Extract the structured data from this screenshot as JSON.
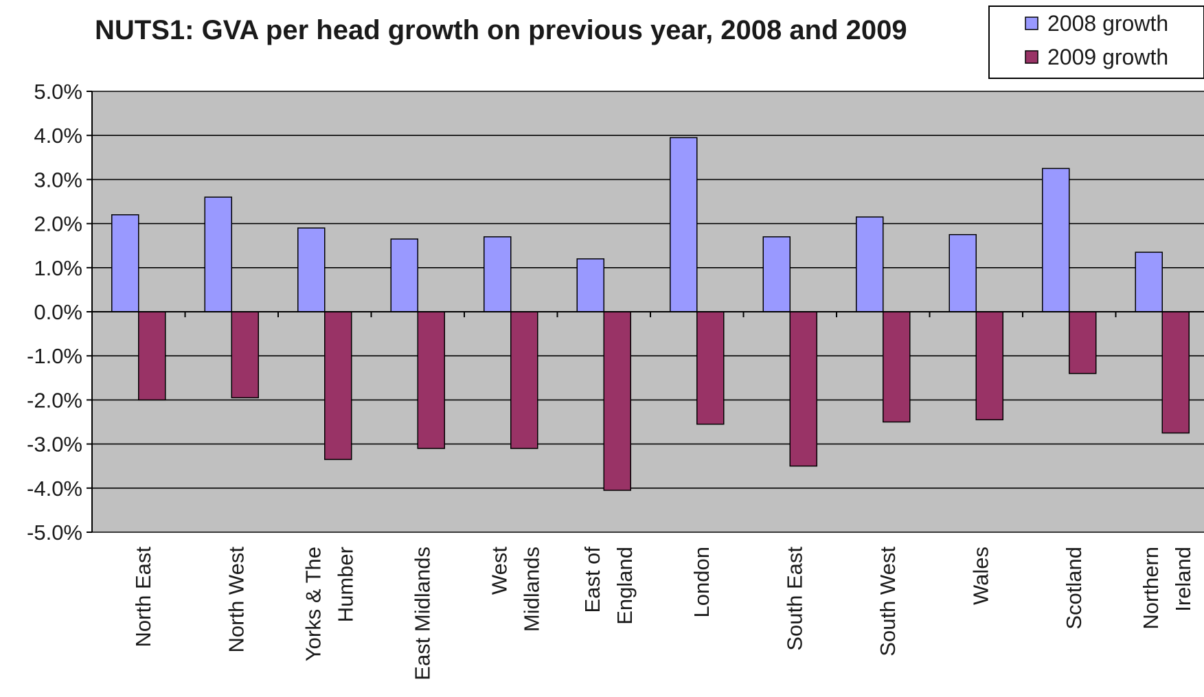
{
  "chart_data": {
    "type": "bar",
    "title": "NUTS1: GVA per head growth on previous year, 2008 and 2009",
    "xlabel": "",
    "ylabel": "",
    "ylim": [
      -5.0,
      5.0
    ],
    "yticks": [
      5.0,
      4.0,
      3.0,
      2.0,
      1.0,
      0.0,
      -1.0,
      -2.0,
      -3.0,
      -4.0,
      -5.0
    ],
    "ytick_labels": [
      "5.0%",
      "4.0%",
      "3.0%",
      "2.0%",
      "1.0%",
      "0.0%",
      "-1.0%",
      "-2.0%",
      "-3.0%",
      "-4.0%",
      "-5.0%"
    ],
    "grid": true,
    "legend_position": "top-right",
    "plot_background": "#c0c0c0",
    "categories": [
      [
        "North East"
      ],
      [
        "North West"
      ],
      [
        "Yorks & The",
        "Humber"
      ],
      [
        "East Midlands"
      ],
      [
        "West",
        "Midlands"
      ],
      [
        "East of",
        "England"
      ],
      [
        "London"
      ],
      [
        "South East"
      ],
      [
        "South West"
      ],
      [
        "Wales"
      ],
      [
        "Scotland"
      ],
      [
        "Northern",
        "Ireland"
      ]
    ],
    "series": [
      {
        "name": "2008 growth",
        "color": "#9999ff",
        "values": [
          2.2,
          2.6,
          1.9,
          1.65,
          1.7,
          1.2,
          3.95,
          1.7,
          2.15,
          1.75,
          3.25,
          1.35
        ]
      },
      {
        "name": "2009 growth",
        "color": "#993366",
        "values": [
          -2.0,
          -1.95,
          -3.35,
          -3.1,
          -3.1,
          -4.05,
          -2.55,
          -3.5,
          -2.5,
          -2.45,
          -1.4,
          -2.75
        ]
      }
    ]
  }
}
